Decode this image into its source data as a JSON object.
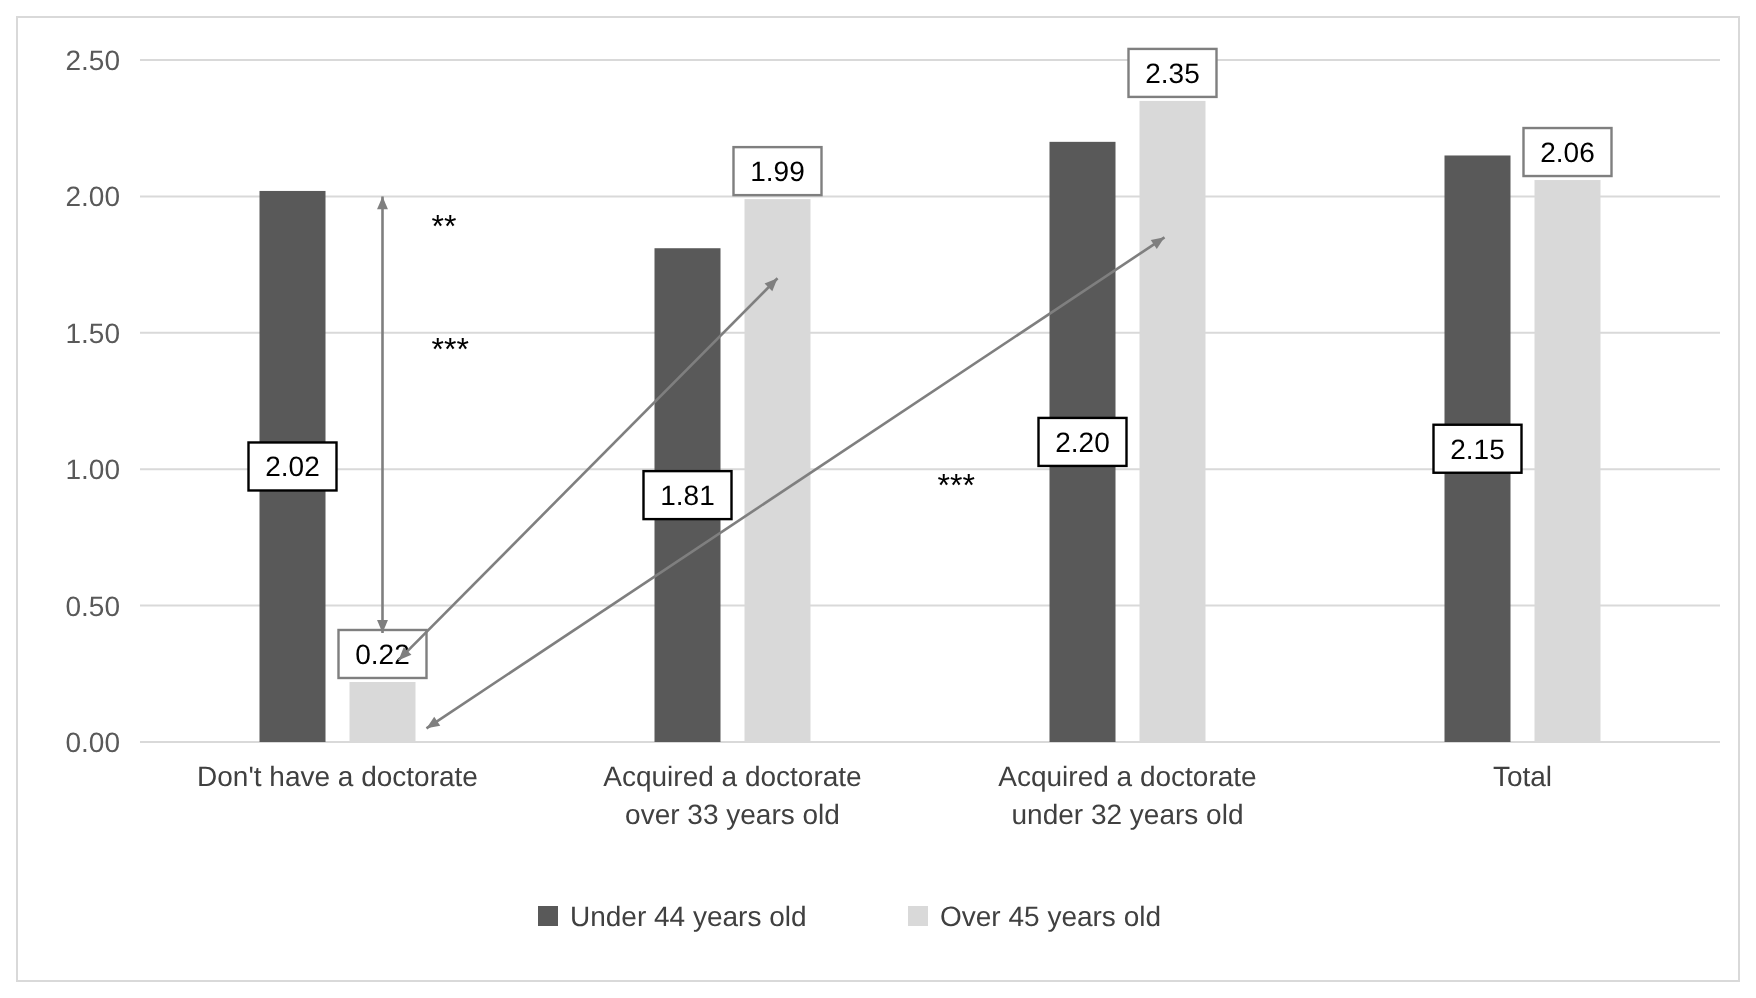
{
  "chart_data": {
    "type": "bar",
    "categories": [
      "Don't have a doctorate",
      "Acquired a doctorate over 33 years old",
      "Acquired a doctorate under 32 years old",
      "Total"
    ],
    "series": [
      {
        "name": "Under 44 years old",
        "color": "#595959",
        "values": [
          2.02,
          1.81,
          2.2,
          2.15
        ],
        "value_labels": [
          "2.02",
          "1.81",
          "2.20",
          "2.15"
        ]
      },
      {
        "name": "Over 45 years old",
        "color": "#d9d9d9",
        "values": [
          0.22,
          1.99,
          2.35,
          2.06
        ],
        "value_labels": [
          "0.22",
          "1.99",
          "2.35",
          "2.06"
        ]
      }
    ],
    "ylim": [
      0,
      2.5
    ],
    "yticks": [
      {
        "value": 0,
        "label": "0.00"
      },
      {
        "value": 0.5,
        "label": "0.50"
      },
      {
        "value": 1,
        "label": "1.00"
      },
      {
        "value": 1.5,
        "label": "1.50"
      },
      {
        "value": 2,
        "label": "2.00"
      },
      {
        "value": 2.5,
        "label": "2.50"
      }
    ],
    "grid": "y",
    "legend": "bottom",
    "annotations": [
      "**",
      "***",
      "***"
    ]
  }
}
